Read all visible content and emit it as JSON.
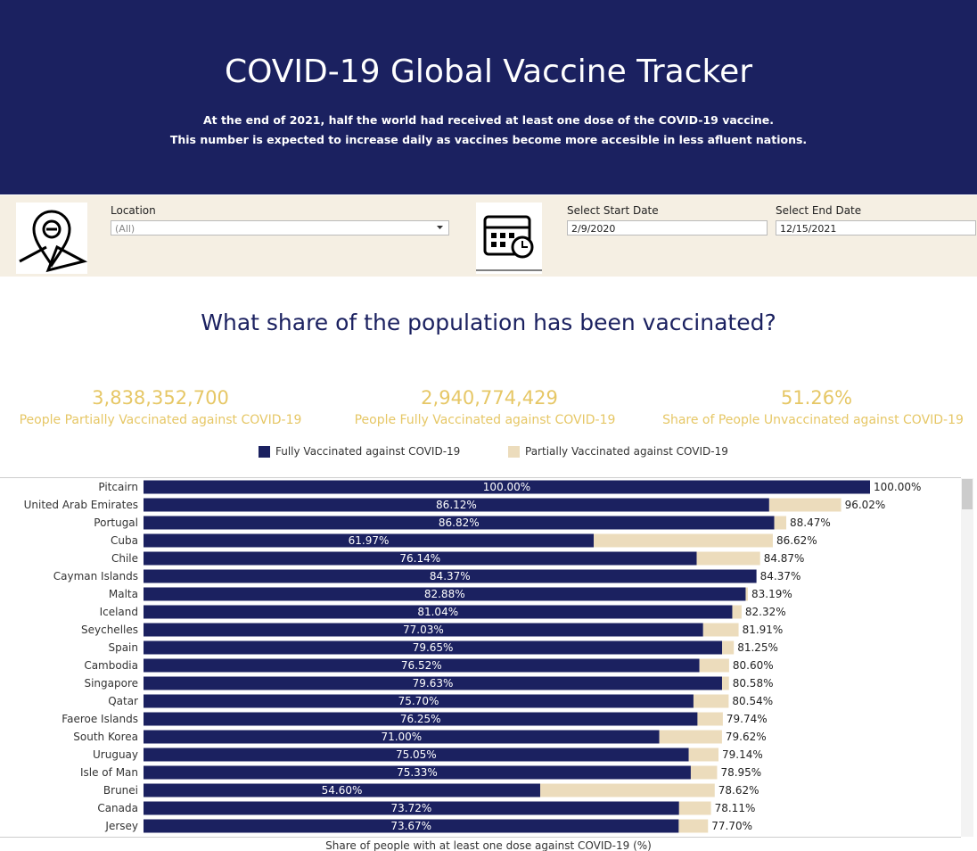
{
  "header": {
    "title": "COVID-19 Global Vaccine Tracker",
    "subtitle_lines": [
      "At the end of 2021,  half the world had received at least one dose of the COVID-19 vaccine.",
      "This number is expected to increase daily as vaccines become more accesible in less afluent nations."
    ]
  },
  "filters": {
    "location": {
      "label": "Location",
      "value": "(All)"
    },
    "start_date": {
      "label": "Select Start Date",
      "value": "2/9/2020"
    },
    "end_date": {
      "label": "Select End Date",
      "value": "12/15/2021"
    }
  },
  "section_title": "What share of the population has been vaccinated?",
  "kpis": [
    {
      "value": "3,838,352,700",
      "label": "People Partially Vaccinated against COVID-19"
    },
    {
      "value": "2,940,774,429",
      "label": "People Fully Vaccinated against COVID-19"
    },
    {
      "value": "51.26%",
      "label": "Share of People Unvaccinated against COVID-19"
    }
  ],
  "chart_data": {
    "type": "stacked_barh",
    "x_label": "Share of people with at least one dose against COVID-19 (%)",
    "xlim": [
      0,
      100
    ],
    "categories": [
      "Pitcairn",
      "United Arab Emirates",
      "Portugal",
      "Cuba",
      "Chile",
      "Cayman Islands",
      "Malta",
      "Iceland",
      "Seychelles",
      "Spain",
      "Cambodia",
      "Singapore",
      "Qatar",
      "Faeroe Islands",
      "South Korea",
      "Uruguay",
      "Isle of Man",
      "Brunei",
      "Canada",
      "Jersey"
    ],
    "series": [
      {
        "name": "Fully Vaccinated against COVID-19",
        "color": "#1b2160",
        "values": [
          100,
          86.12,
          86.82,
          61.97,
          76.14,
          84.37,
          82.88,
          81.04,
          77.03,
          79.65,
          76.52,
          79.63,
          75.7,
          76.25,
          71.0,
          75.05,
          75.33,
          54.6,
          73.72,
          73.67
        ],
        "value_labels": [
          "100.00%",
          "86.12%",
          "86.82%",
          "61.97%",
          "76.14%",
          "84.37%",
          "82.88%",
          "81.04%",
          "77.03%",
          "79.65%",
          "76.52%",
          "79.63%",
          "75.70%",
          "76.25%",
          "71.00%",
          "75.05%",
          "75.33%",
          "54.60%",
          "73.72%",
          "73.67%"
        ]
      },
      {
        "name": "Partially Vaccinated against COVID-19",
        "color": "#ecdcbc",
        "values": [
          0,
          9.9,
          1.65,
          24.65,
          8.73,
          0,
          0.31,
          1.28,
          4.88,
          1.6,
          4.08,
          0.95,
          4.84,
          3.49,
          8.62,
          4.09,
          3.62,
          24.02,
          4.39,
          4.03
        ]
      }
    ],
    "totals": [
      100,
      96.02,
      88.47,
      86.62,
      84.87,
      84.37,
      83.19,
      82.32,
      81.91,
      81.25,
      80.6,
      80.58,
      80.54,
      79.74,
      79.62,
      79.14,
      78.95,
      78.62,
      78.11,
      77.7
    ],
    "total_labels": [
      "100.00%",
      "96.02%",
      "88.47%",
      "86.62%",
      "84.87%",
      "84.37%",
      "83.19%",
      "82.32%",
      "81.91%",
      "81.25%",
      "80.60%",
      "80.58%",
      "80.54%",
      "79.74%",
      "79.62%",
      "79.14%",
      "78.95%",
      "78.62%",
      "78.11%",
      "77.70%"
    ]
  }
}
